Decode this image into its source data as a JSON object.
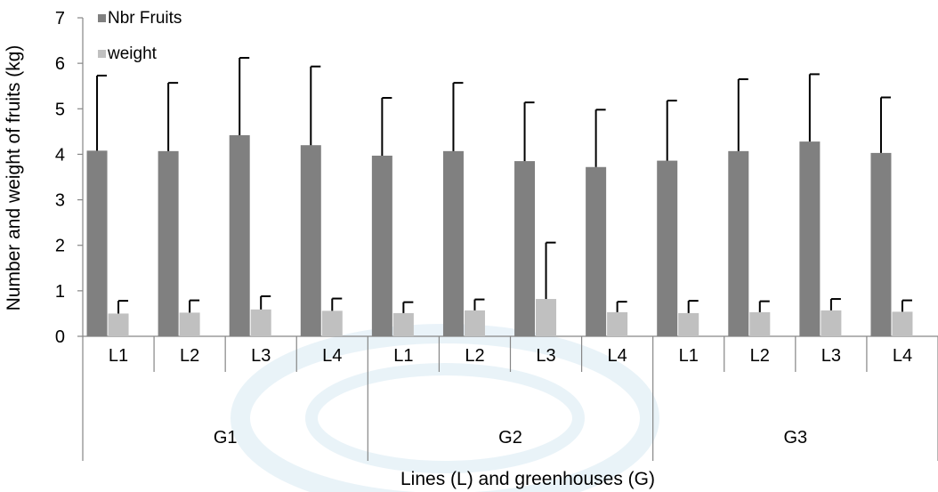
{
  "chart_data": {
    "type": "bar",
    "title": "",
    "ylabel": "Number and weight of fruits (kg)",
    "xlabel": "Lines (L) and greenhouses (G)",
    "ylim": [
      0,
      7
    ],
    "yticks": [
      0,
      1,
      2,
      3,
      4,
      5,
      6,
      7
    ],
    "grid": false,
    "legend_position": "top-left",
    "categories": [
      "L1",
      "L2",
      "L3",
      "L4",
      "L1",
      "L2",
      "L3",
      "L4",
      "L1",
      "L2",
      "L3",
      "L4"
    ],
    "groups": [
      {
        "label": "G1",
        "span": 4
      },
      {
        "label": "G2",
        "span": 4
      },
      {
        "label": "G3",
        "span": 4
      }
    ],
    "series": [
      {
        "name": "Nbr Fruits",
        "color": "#808080",
        "values": [
          4.08,
          4.07,
          4.42,
          4.2,
          3.97,
          4.07,
          3.85,
          3.72,
          3.86,
          4.07,
          4.28,
          4.03
        ],
        "errors": [
          1.65,
          1.5,
          1.7,
          1.73,
          1.27,
          1.5,
          1.29,
          1.26,
          1.32,
          1.58,
          1.48,
          1.22
        ]
      },
      {
        "name": "weight",
        "color": "#c0c0c0",
        "values": [
          0.5,
          0.52,
          0.59,
          0.56,
          0.51,
          0.57,
          0.82,
          0.53,
          0.51,
          0.53,
          0.57,
          0.54
        ],
        "errors": [
          0.28,
          0.27,
          0.29,
          0.27,
          0.24,
          0.24,
          1.24,
          0.23,
          0.27,
          0.24,
          0.25,
          0.25
        ]
      }
    ]
  }
}
